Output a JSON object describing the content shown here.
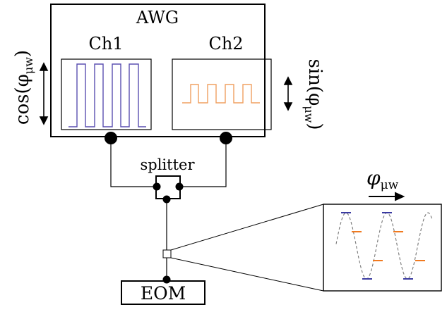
{
  "awg": {
    "label": "AWG"
  },
  "channels": {
    "ch1_label": "Ch1",
    "ch2_label": "Ch2"
  },
  "labels": {
    "cos_label": "cos(φ",
    "cos_sub": "μw",
    "cos_close": ")",
    "sin_label": "sin(φ",
    "sin_sub": "μw",
    "sin_close": ")",
    "splitter": "splitter",
    "eom": "EOM",
    "phi_label": "φ",
    "phi_sub": "μw"
  },
  "colors": {
    "ch1_wave": "#5a4fb0",
    "ch2_wave": "#f0a060",
    "inset_blue": "#3a3aa0",
    "inset_orange": "#f07a20",
    "dashed_sine": "#777777",
    "line": "#000000"
  }
}
